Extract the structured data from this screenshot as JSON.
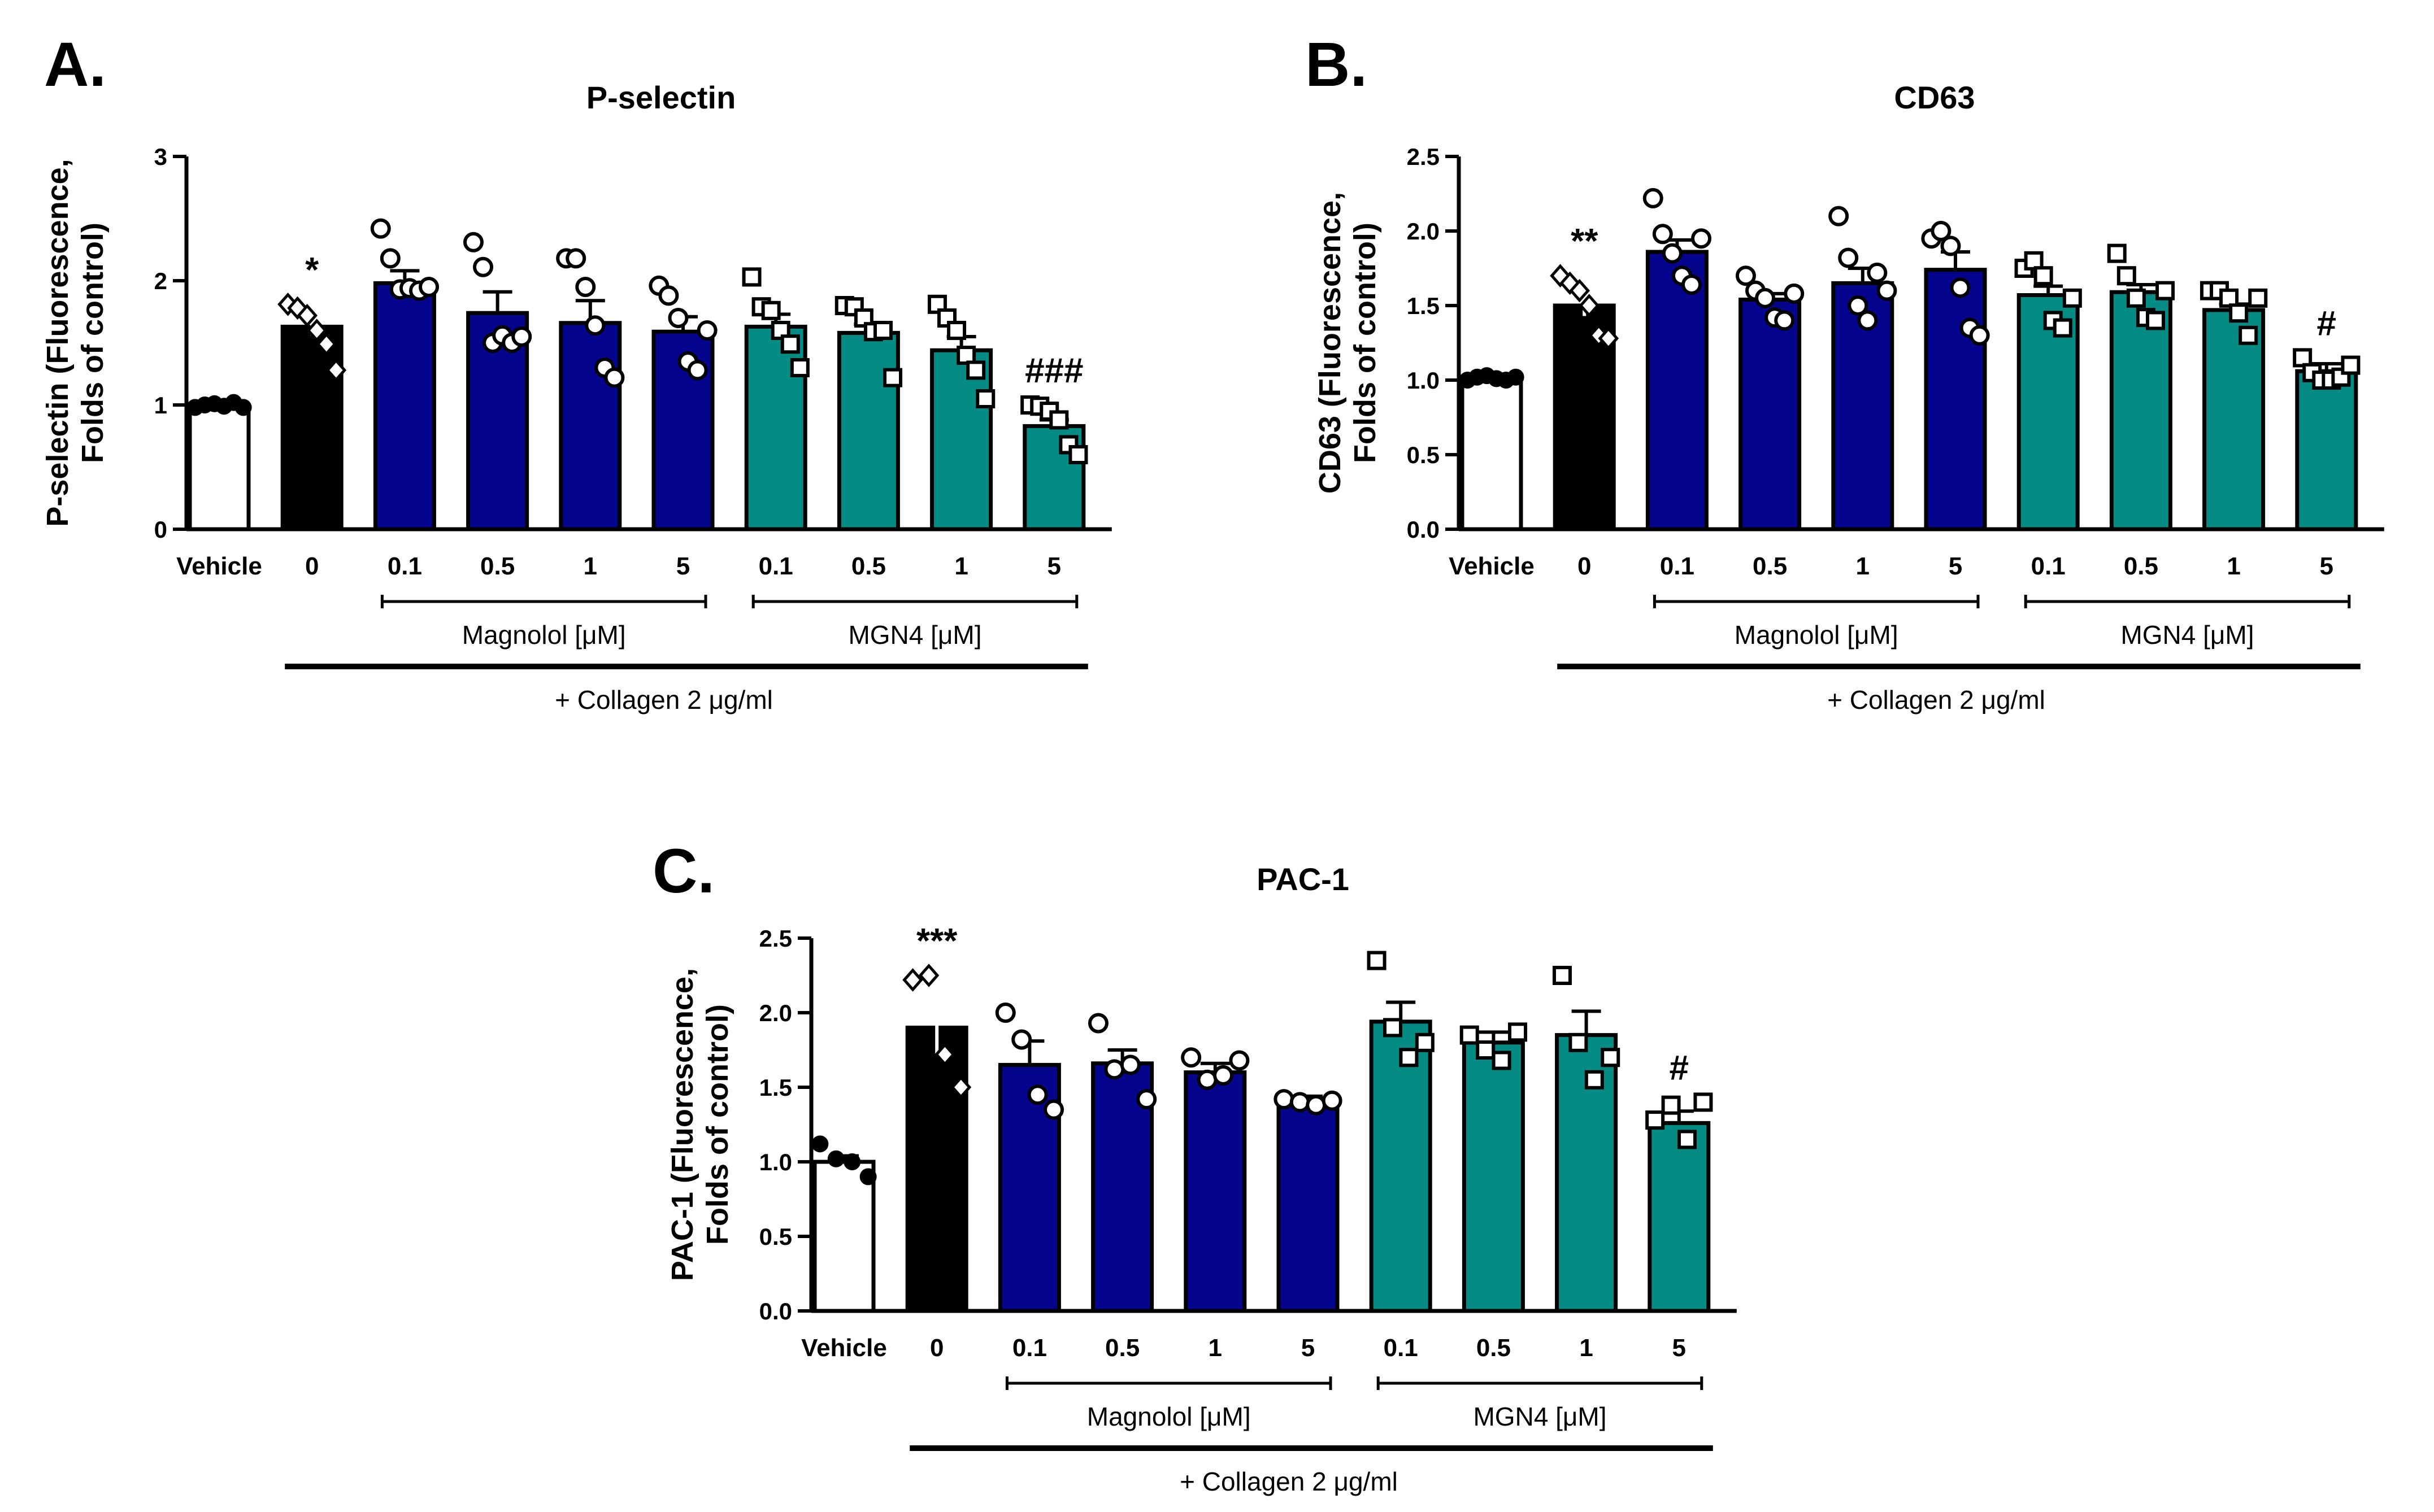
{
  "chart_data": [
    {
      "type": "bar",
      "panel": "A.",
      "title": "P-selectin",
      "ylabel": [
        "P-selectin (Fluorescence,",
        "Folds of control)"
      ],
      "ylim": [
        0,
        3
      ],
      "yticks": [
        0,
        1,
        2,
        3
      ],
      "ytick_labels": [
        "0",
        "1",
        "2",
        "3"
      ],
      "categories": [
        "Vehicle",
        "0",
        "0.1",
        "0.5",
        "1",
        "5",
        "0.1",
        "0.5",
        "1",
        "5"
      ],
      "colors": [
        "#ffffff",
        "#000000",
        "#04058c",
        "#04058c",
        "#04058c",
        "#04058c",
        "#048b84",
        "#048b84",
        "#048b84",
        "#048b84"
      ],
      "values": [
        1.0,
        1.63,
        1.98,
        1.74,
        1.66,
        1.59,
        1.63,
        1.58,
        1.44,
        0.83
      ],
      "errors": [
        0.01,
        0.07,
        0.1,
        0.17,
        0.18,
        0.12,
        0.1,
        0.07,
        0.11,
        0.05
      ],
      "markers": [
        "dot",
        "diamond",
        "circle",
        "circle",
        "circle",
        "circle",
        "square",
        "square",
        "square",
        "square"
      ],
      "points": [
        [
          0.98,
          1.0,
          1.01,
          0.99,
          1.02,
          0.98
        ],
        [
          1.81,
          1.78,
          1.72,
          1.6,
          1.49,
          1.28
        ],
        [
          2.42,
          2.18,
          1.93,
          1.94,
          1.92,
          1.95
        ],
        [
          2.31,
          2.11,
          1.5,
          1.56,
          1.5,
          1.55
        ],
        [
          2.18,
          2.18,
          1.95,
          1.64,
          1.3,
          1.22
        ],
        [
          1.96,
          1.88,
          1.7,
          1.35,
          1.28,
          1.6
        ],
        [
          2.03,
          1.79,
          1.76,
          1.6,
          1.49,
          1.3
        ],
        [
          1.8,
          1.79,
          1.7,
          1.59,
          1.6,
          1.22
        ],
        [
          1.81,
          1.7,
          1.6,
          1.4,
          1.28,
          1.05
        ],
        [
          1.0,
          0.99,
          0.95,
          0.88,
          0.68,
          0.6
        ]
      ],
      "annotations": [
        "",
        "*",
        "",
        "",
        "",
        "",
        "",
        "",
        "",
        "###"
      ],
      "groups": [
        {
          "label": "Magnolol [μM]",
          "from": 2,
          "to": 5
        },
        {
          "label": "MGN4 [μM]",
          "from": 6,
          "to": 9
        }
      ],
      "treatment": {
        "label": "+ Collagen 2 μg/ml",
        "from": 1,
        "to": 9
      }
    },
    {
      "type": "bar",
      "panel": "B.",
      "title": "CD63",
      "ylabel": [
        "CD63 (Fluorescence,",
        "Folds of control)"
      ],
      "ylim": [
        0,
        2.5
      ],
      "yticks": [
        0,
        0.5,
        1.0,
        1.5,
        2.0,
        2.5
      ],
      "ytick_labels": [
        "0.0",
        "0.5",
        "1.0",
        "1.5",
        "2.0",
        "2.5"
      ],
      "categories": [
        "Vehicle",
        "0",
        "0.1",
        "0.5",
        "1",
        "5",
        "0.1",
        "0.5",
        "1",
        "5"
      ],
      "colors": [
        "#ffffff",
        "#000000",
        "#04058c",
        "#04058c",
        "#04058c",
        "#04058c",
        "#048b84",
        "#048b84",
        "#048b84",
        "#048b84"
      ],
      "values": [
        1.01,
        1.5,
        1.86,
        1.54,
        1.65,
        1.74,
        1.57,
        1.59,
        1.47,
        1.06
      ],
      "errors": [
        0.01,
        0.07,
        0.08,
        0.04,
        0.1,
        0.12,
        0.06,
        0.05,
        0.04,
        0.05
      ],
      "markers": [
        "dot",
        "diamond",
        "circle",
        "circle",
        "circle",
        "circle",
        "square",
        "square",
        "square",
        "square"
      ],
      "points": [
        [
          1.0,
          1.02,
          1.03,
          1.01,
          1.0,
          1.02
        ],
        [
          1.7,
          1.65,
          1.6,
          1.5,
          1.3,
          1.28
        ],
        [
          2.22,
          1.98,
          1.85,
          1.7,
          1.64,
          1.95
        ],
        [
          1.7,
          1.6,
          1.55,
          1.42,
          1.4,
          1.58
        ],
        [
          2.1,
          1.82,
          1.5,
          1.4,
          1.72,
          1.6
        ],
        [
          1.95,
          2.0,
          1.9,
          1.62,
          1.35,
          1.3
        ],
        [
          1.75,
          1.8,
          1.7,
          1.4,
          1.35,
          1.55
        ],
        [
          1.85,
          1.7,
          1.55,
          1.42,
          1.4,
          1.6
        ],
        [
          1.6,
          1.6,
          1.55,
          1.45,
          1.3,
          1.55
        ],
        [
          1.15,
          1.05,
          1.0,
          1.0,
          1.02,
          1.1
        ]
      ],
      "annotations": [
        "",
        "**",
        "",
        "",
        "",
        "",
        "",
        "",
        "",
        "#"
      ],
      "groups": [
        {
          "label": "Magnolol [μM]",
          "from": 2,
          "to": 5
        },
        {
          "label": "MGN4 [μM]",
          "from": 6,
          "to": 9
        }
      ],
      "treatment": {
        "label": "+ Collagen 2 μg/ml",
        "from": 1,
        "to": 9
      }
    },
    {
      "type": "bar",
      "panel": "C.",
      "title": "PAC-1",
      "ylabel": [
        "PAC-1 (Fluorescence,",
        "Folds of control)"
      ],
      "ylim": [
        0,
        2.5
      ],
      "yticks": [
        0,
        0.5,
        1.0,
        1.5,
        2.0,
        2.5
      ],
      "ytick_labels": [
        "0.0",
        "0.5",
        "1.0",
        "1.5",
        "2.0",
        "2.5"
      ],
      "categories": [
        "Vehicle",
        "0",
        "0.1",
        "0.5",
        "1",
        "5",
        "0.1",
        "0.5",
        "1",
        "5"
      ],
      "colors": [
        "#ffffff",
        "#000000",
        "#04058c",
        "#04058c",
        "#04058c",
        "#04058c",
        "#048b84",
        "#048b84",
        "#048b84",
        "#048b84"
      ],
      "values": [
        1.0,
        1.9,
        1.65,
        1.66,
        1.6,
        1.41,
        1.94,
        1.8,
        1.85,
        1.26
      ],
      "errors": [
        0.04,
        0.18,
        0.16,
        0.09,
        0.06,
        0.03,
        0.13,
        0.07,
        0.16,
        0.08
      ],
      "markers": [
        "dot",
        "diamond",
        "circle",
        "circle",
        "circle",
        "circle",
        "square",
        "square",
        "square",
        "square"
      ],
      "points": [
        [
          1.12,
          1.02,
          1.0,
          0.9
        ],
        [
          2.22,
          2.25,
          1.72,
          1.5
        ],
        [
          2.0,
          1.82,
          1.45,
          1.35
        ],
        [
          1.93,
          1.62,
          1.65,
          1.42
        ],
        [
          1.7,
          1.55,
          1.58,
          1.68
        ],
        [
          1.42,
          1.4,
          1.38,
          1.41
        ],
        [
          2.35,
          1.9,
          1.7,
          1.8
        ],
        [
          1.85,
          1.75,
          1.68,
          1.87
        ],
        [
          2.25,
          1.8,
          1.55,
          1.7
        ],
        [
          1.28,
          1.38,
          1.15,
          1.4
        ]
      ],
      "annotations": [
        "",
        "***",
        "",
        "",
        "",
        "",
        "",
        "",
        "",
        "#"
      ],
      "groups": [
        {
          "label": "Magnolol [μM]",
          "from": 2,
          "to": 5
        },
        {
          "label": "MGN4 [μM]",
          "from": 6,
          "to": 9
        }
      ],
      "treatment": {
        "label": "+ Collagen 2 μg/ml",
        "from": 1,
        "to": 9
      }
    }
  ]
}
